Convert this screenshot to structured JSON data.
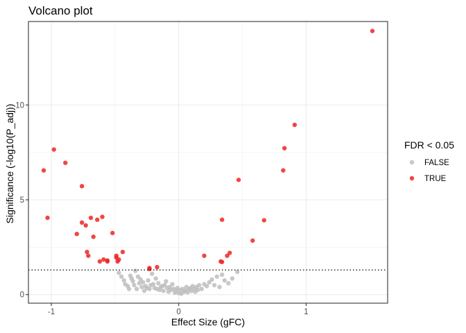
{
  "chart_data": {
    "type": "scatter",
    "title": "Volcano plot",
    "xlabel": "Effect Size (gFC)",
    "ylabel": "Significance (-log10(P_adj))",
    "xlim": [
      -1.18,
      1.64
    ],
    "ylim": [
      -0.45,
      14.4
    ],
    "x_ticks": [
      -1,
      0,
      1
    ],
    "x_tick_labels": [
      "-1",
      "0",
      "1"
    ],
    "y_ticks": [
      0,
      5,
      10
    ],
    "y_tick_labels": [
      "0",
      "5",
      "10"
    ],
    "threshold_y": 1.3,
    "grid": true,
    "legend": {
      "title": "FDR < 0.05",
      "placement": "right",
      "entries": [
        {
          "label": "FALSE",
          "color": "#bebebe"
        },
        {
          "label": "TRUE",
          "color": "#ee2424"
        }
      ]
    },
    "series": [
      {
        "name": "FALSE",
        "color": "#bebebe",
        "points": [
          [
            -0.47,
            1.15
          ],
          [
            -0.45,
            0.95
          ],
          [
            -0.43,
            0.75
          ],
          [
            -0.42,
            0.55
          ],
          [
            -0.4,
            0.45
          ],
          [
            -0.39,
            0.3
          ],
          [
            -0.38,
            1.0
          ],
          [
            -0.37,
            0.85
          ],
          [
            -0.36,
            0.7
          ],
          [
            -0.35,
            0.5
          ],
          [
            -0.34,
            1.25
          ],
          [
            -0.33,
            0.3
          ],
          [
            -0.32,
            0.95
          ],
          [
            -0.31,
            0.6
          ],
          [
            -0.3,
            0.8
          ],
          [
            -0.29,
            0.4
          ],
          [
            -0.28,
            0.65
          ],
          [
            -0.27,
            0.2
          ],
          [
            -0.26,
            0.45
          ],
          [
            -0.25,
            0.35
          ],
          [
            -0.24,
            0.75
          ],
          [
            -0.23,
            0.3
          ],
          [
            -0.22,
            0.5
          ],
          [
            -0.21,
            1.1
          ],
          [
            -0.2,
            0.55
          ],
          [
            -0.19,
            0.35
          ],
          [
            -0.18,
            0.85
          ],
          [
            -0.17,
            0.3
          ],
          [
            -0.16,
            0.6
          ],
          [
            -0.15,
            0.25
          ],
          [
            -0.14,
            0.4
          ],
          [
            -0.13,
            0.45
          ],
          [
            -0.12,
            0.2
          ],
          [
            -0.11,
            0.5
          ],
          [
            -0.1,
            0.7
          ],
          [
            -0.09,
            0.35
          ],
          [
            -0.08,
            0.15
          ],
          [
            -0.07,
            0.4
          ],
          [
            -0.06,
            0.25
          ],
          [
            -0.05,
            0.55
          ],
          [
            -0.04,
            0.3
          ],
          [
            -0.03,
            0.1
          ],
          [
            -0.02,
            0.2
          ],
          [
            -0.01,
            0.35
          ],
          [
            0.0,
            0.08
          ],
          [
            0.01,
            0.25
          ],
          [
            0.02,
            0.05
          ],
          [
            0.03,
            0.3
          ],
          [
            0.04,
            0.15
          ],
          [
            0.05,
            0.2
          ],
          [
            0.06,
            0.4
          ],
          [
            0.07,
            0.12
          ],
          [
            0.08,
            0.28
          ],
          [
            0.09,
            0.35
          ],
          [
            0.1,
            0.2
          ],
          [
            0.11,
            0.45
          ],
          [
            0.12,
            0.3
          ],
          [
            0.13,
            0.15
          ],
          [
            0.14,
            0.4
          ],
          [
            0.15,
            0.25
          ],
          [
            0.16,
            0.5
          ],
          [
            0.18,
            0.3
          ],
          [
            0.2,
            0.55
          ],
          [
            0.22,
            0.45
          ],
          [
            0.24,
            0.65
          ],
          [
            0.26,
            0.8
          ],
          [
            0.28,
            0.5
          ],
          [
            0.3,
            0.95
          ],
          [
            0.32,
            0.4
          ],
          [
            0.34,
            1.05
          ],
          [
            0.36,
            0.75
          ],
          [
            0.39,
            0.6
          ],
          [
            0.42,
            0.85
          ],
          [
            0.46,
            1.2
          ]
        ]
      },
      {
        "name": "TRUE",
        "color": "#ee2424",
        "points": [
          [
            -1.06,
            6.55
          ],
          [
            -1.03,
            4.05
          ],
          [
            -0.98,
            7.65
          ],
          [
            -0.89,
            6.95
          ],
          [
            -0.8,
            3.2
          ],
          [
            -0.76,
            3.8
          ],
          [
            -0.76,
            5.72
          ],
          [
            -0.73,
            3.65
          ],
          [
            -0.72,
            2.25
          ],
          [
            -0.71,
            2.05
          ],
          [
            -0.69,
            4.05
          ],
          [
            -0.67,
            3.05
          ],
          [
            -0.64,
            3.95
          ],
          [
            -0.62,
            1.75
          ],
          [
            -0.6,
            4.1
          ],
          [
            -0.59,
            1.85
          ],
          [
            -0.56,
            1.8
          ],
          [
            -0.56,
            1.75
          ],
          [
            -0.52,
            3.25
          ],
          [
            -0.49,
            2.05
          ],
          [
            -0.49,
            1.95
          ],
          [
            -0.48,
            1.75
          ],
          [
            -0.47,
            1.85
          ],
          [
            -0.44,
            2.25
          ],
          [
            -0.23,
            1.4
          ],
          [
            -0.23,
            1.35
          ],
          [
            -0.17,
            1.45
          ],
          [
            0.2,
            2.05
          ],
          [
            0.33,
            1.75
          ],
          [
            0.34,
            1.72
          ],
          [
            0.34,
            3.95
          ],
          [
            0.38,
            2.05
          ],
          [
            0.4,
            2.2
          ],
          [
            0.47,
            6.05
          ],
          [
            0.58,
            2.85
          ],
          [
            0.67,
            3.92
          ],
          [
            0.82,
            6.55
          ],
          [
            0.83,
            7.72
          ],
          [
            0.91,
            8.95
          ],
          [
            1.52,
            13.9
          ]
        ]
      }
    ]
  }
}
